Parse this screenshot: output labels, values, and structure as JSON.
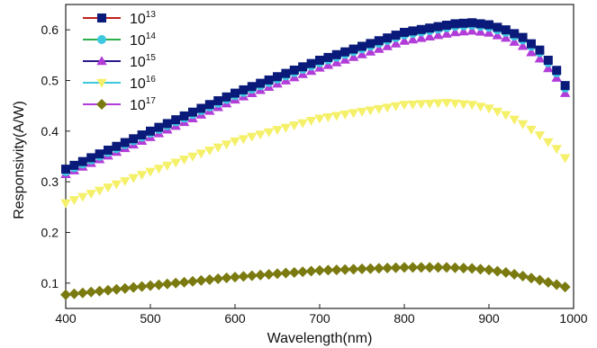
{
  "chart_data": {
    "type": "scatter",
    "xlabel": "Wavelength(nm)",
    "ylabel": "Responsivity(A/W)",
    "xlim": [
      400,
      1000
    ],
    "ylim": [
      0.05,
      0.65
    ],
    "xticks": [
      "400",
      "500",
      "600",
      "700",
      "800",
      "900",
      "1000"
    ],
    "yticks": [
      "0.1",
      "0.2",
      "0.3",
      "0.4",
      "0.5",
      "0.6"
    ],
    "grid": false,
    "legend": "top-left",
    "series": [
      {
        "name_base": "10",
        "name_exp": "13",
        "color": "#0a1a7a",
        "line_color": "#c0201a",
        "marker": "square",
        "x": [
          400,
          500,
          600,
          700,
          800,
          860,
          880,
          900,
          920,
          940,
          960,
          980,
          995
        ],
        "y": [
          0.325,
          0.4,
          0.475,
          0.54,
          0.595,
          0.612,
          0.614,
          0.61,
          0.6,
          0.585,
          0.56,
          0.52,
          0.475
        ]
      },
      {
        "name_base": "10",
        "name_exp": "14",
        "color": "#3cc8e0",
        "line_color": "#2cae4a",
        "marker": "circle",
        "x": [
          400,
          500,
          600,
          700,
          800,
          860,
          880,
          900,
          920,
          940,
          960,
          980,
          995
        ],
        "y": [
          0.32,
          0.396,
          0.47,
          0.535,
          0.59,
          0.607,
          0.609,
          0.605,
          0.595,
          0.58,
          0.555,
          0.515,
          0.47
        ]
      },
      {
        "name_base": "10",
        "name_exp": "15",
        "color": "#b23cd8",
        "line_color": "#2a1a8a",
        "marker": "triangle-up",
        "x": [
          400,
          500,
          600,
          700,
          800,
          860,
          880,
          900,
          920,
          940,
          960,
          980,
          995
        ],
        "y": [
          0.315,
          0.388,
          0.462,
          0.525,
          0.578,
          0.595,
          0.598,
          0.594,
          0.584,
          0.568,
          0.543,
          0.505,
          0.46
        ]
      },
      {
        "name_base": "10",
        "name_exp": "16",
        "color": "#f5f06a",
        "line_color": "#3cc8e0",
        "marker": "triangle-down",
        "x": [
          400,
          500,
          600,
          700,
          800,
          850,
          880,
          900,
          920,
          940,
          960,
          980,
          995
        ],
        "y": [
          0.258,
          0.32,
          0.38,
          0.425,
          0.452,
          0.456,
          0.452,
          0.445,
          0.432,
          0.414,
          0.392,
          0.365,
          0.338
        ]
      },
      {
        "name_base": "10",
        "name_exp": "17",
        "color": "#7a7a10",
        "line_color": "#b23cd8",
        "marker": "diamond",
        "x": [
          400,
          500,
          600,
          700,
          800,
          850,
          880,
          900,
          920,
          940,
          960,
          980,
          995
        ],
        "y": [
          0.077,
          0.095,
          0.112,
          0.125,
          0.131,
          0.131,
          0.129,
          0.126,
          0.121,
          0.114,
          0.106,
          0.097,
          0.09
        ]
      }
    ]
  }
}
